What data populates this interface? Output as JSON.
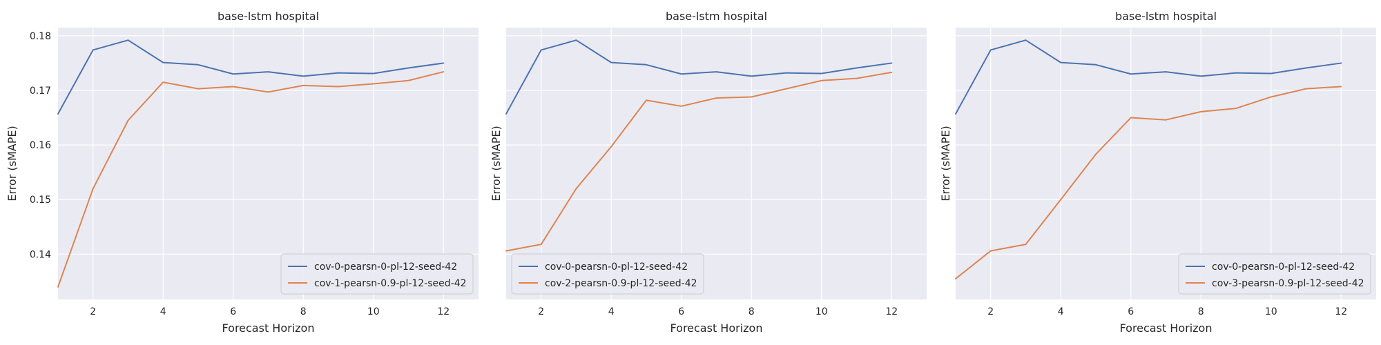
{
  "chart_data": [
    {
      "type": "line",
      "title": "base-lstm hospital",
      "xlabel": "Forecast Horizon",
      "ylabel": "Error (sMAPE)",
      "x": [
        1,
        2,
        3,
        4,
        5,
        6,
        7,
        8,
        9,
        10,
        11,
        12
      ],
      "xlim": [
        1,
        13
      ],
      "ylim": [
        0.1317,
        0.1815
      ],
      "xticks": [
        2,
        4,
        6,
        8,
        10,
        12
      ],
      "yticks": [
        0.14,
        0.15,
        0.16,
        0.17,
        0.18
      ],
      "ytick_labels": [
        "0.14",
        "0.15",
        "0.16",
        "0.17",
        "0.18"
      ],
      "show_yticks": true,
      "grid": true,
      "legend_position": "lower-right",
      "series": [
        {
          "name": "cov-0-pearsn-0-pl-12-seed-42",
          "color": "#4c72b0",
          "values": [
            0.1657,
            0.1774,
            0.1792,
            0.1751,
            0.1747,
            0.173,
            0.1734,
            0.1726,
            0.1732,
            0.1731,
            0.1741,
            0.175
          ]
        },
        {
          "name": "cov-1-pearsn-0.9-pl-12-seed-42",
          "color": "#dd8452",
          "values": [
            0.134,
            0.152,
            0.1645,
            0.1715,
            0.1703,
            0.1707,
            0.1697,
            0.1709,
            0.1707,
            0.1712,
            0.1718,
            0.1734
          ]
        }
      ]
    },
    {
      "type": "line",
      "title": "base-lstm hospital",
      "xlabel": "Forecast Horizon",
      "ylabel": "Error (sMAPE)",
      "x": [
        1,
        2,
        3,
        4,
        5,
        6,
        7,
        8,
        9,
        10,
        11,
        12
      ],
      "xlim": [
        1,
        13
      ],
      "ylim": [
        0.1317,
        0.1815
      ],
      "xticks": [
        2,
        4,
        6,
        8,
        10,
        12
      ],
      "yticks": [
        0.14,
        0.15,
        0.16,
        0.17,
        0.18
      ],
      "ytick_labels": [
        "0.14",
        "0.15",
        "0.16",
        "0.17",
        "0.18"
      ],
      "show_yticks": false,
      "grid": true,
      "legend_position": "lower-left",
      "series": [
        {
          "name": "cov-0-pearsn-0-pl-12-seed-42",
          "color": "#4c72b0",
          "values": [
            0.1657,
            0.1774,
            0.1792,
            0.1751,
            0.1747,
            0.173,
            0.1734,
            0.1726,
            0.1732,
            0.1731,
            0.1741,
            0.175
          ]
        },
        {
          "name": "cov-2-pearsn-0.9-pl-12-seed-42",
          "color": "#dd8452",
          "values": [
            0.1406,
            0.1418,
            0.152,
            0.1597,
            0.1682,
            0.1671,
            0.1686,
            0.1688,
            0.1703,
            0.1718,
            0.1722,
            0.1733
          ]
        }
      ]
    },
    {
      "type": "line",
      "title": "base-lstm hospital",
      "xlabel": "Forecast Horizon",
      "ylabel": "Error (sMAPE)",
      "x": [
        1,
        2,
        3,
        4,
        5,
        6,
        7,
        8,
        9,
        10,
        11,
        12
      ],
      "xlim": [
        1,
        13
      ],
      "ylim": [
        0.1317,
        0.1815
      ],
      "xticks": [
        2,
        4,
        6,
        8,
        10,
        12
      ],
      "yticks": [
        0.14,
        0.15,
        0.16,
        0.17,
        0.18
      ],
      "ytick_labels": [
        "0.14",
        "0.15",
        "0.16",
        "0.17",
        "0.18"
      ],
      "show_yticks": false,
      "grid": true,
      "legend_position": "lower-right",
      "series": [
        {
          "name": "cov-0-pearsn-0-pl-12-seed-42",
          "color": "#4c72b0",
          "values": [
            0.1657,
            0.1774,
            0.1792,
            0.1751,
            0.1747,
            0.173,
            0.1734,
            0.1726,
            0.1732,
            0.1731,
            0.1741,
            0.175
          ]
        },
        {
          "name": "cov-3-pearsn-0.9-pl-12-seed-42",
          "color": "#dd8452",
          "values": [
            0.1355,
            0.1406,
            0.1418,
            0.15,
            0.1583,
            0.165,
            0.1646,
            0.1661,
            0.1667,
            0.1688,
            0.1703,
            0.1707
          ]
        }
      ]
    }
  ],
  "style": {
    "axes_bg": "#eaeaf2",
    "grid_color": "#ffffff",
    "text_color": "#262626"
  }
}
